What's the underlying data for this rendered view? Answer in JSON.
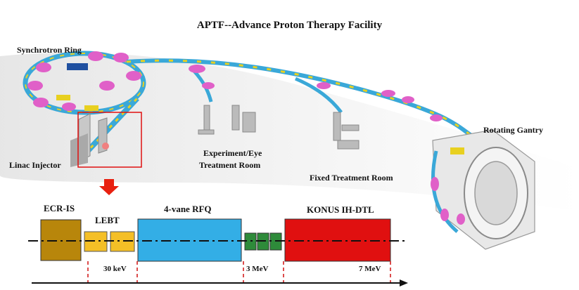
{
  "title": "APTF--Advance Proton Therapy Facility",
  "labels": {
    "synchrotron": "Synchrotron Ring",
    "linac_injector": "Linac Injector",
    "experiment_room_line1": "Experiment/Eye",
    "experiment_room_line2": "Treatment Room",
    "fixed_room": "Fixed Treatment Room",
    "gantry": "Rotating Gantry"
  },
  "linac_chain": {
    "blocks": {
      "ecr_is": "ECR-IS",
      "lebt": "LEBT",
      "rfq": "4-vane RFQ",
      "ih_dtl": "KONUS IH-DTL"
    },
    "energy_markers": [
      "30 keV",
      "3 MeV",
      "7 MeV"
    ]
  },
  "colors": {
    "ecr_is": "#b8860b",
    "lebt": "#f4bf26",
    "rfq": "#33aee6",
    "matching": "#2e8b3a",
    "ih_dtl": "#e01010",
    "magnet_pink": "#e060c8",
    "magnet_yellow": "#e8d020",
    "beamline_blue": "#3aa8d8",
    "arrow_red": "#e82010"
  }
}
